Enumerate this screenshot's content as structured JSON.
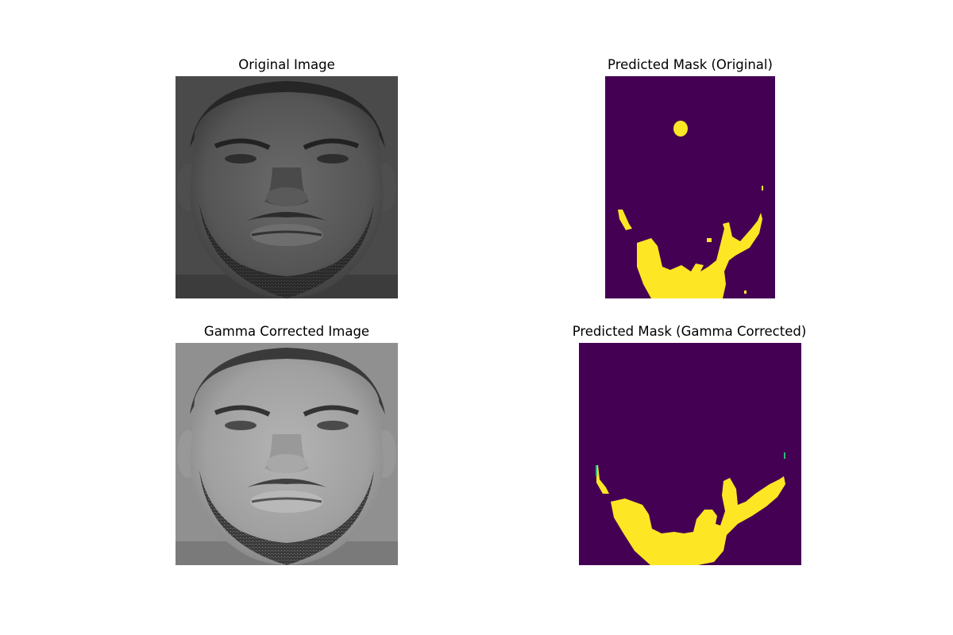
{
  "figure": {
    "panels": [
      {
        "title": "Original Image",
        "kind": "grayscale-face"
      },
      {
        "title": "Predicted Mask (Original)",
        "kind": "segmentation-mask"
      },
      {
        "title": "Gamma Corrected Image",
        "kind": "grayscale-face"
      },
      {
        "title": "Predicted Mask (Gamma Corrected)",
        "kind": "segmentation-mask"
      }
    ]
  },
  "colors": {
    "mask_background": "#440154",
    "mask_foreground": "#fde725",
    "mask_edge": "#35b779"
  }
}
